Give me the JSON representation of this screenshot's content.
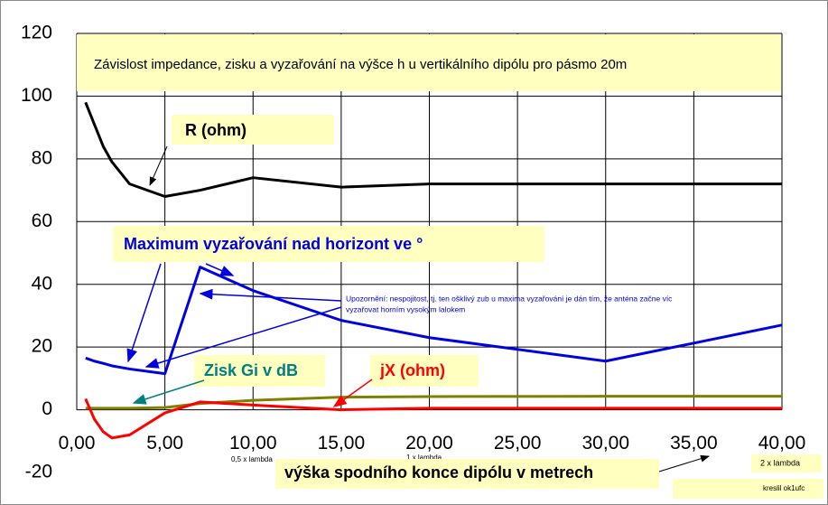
{
  "chart_data": {
    "type": "line",
    "title": "Závislost impedance, zisku a vyzařování na výšce h u vertikálního dipólu pro pásmo 20m",
    "x_label": "výška spodního konce dipólu v metrech",
    "x": [
      0.5,
      1,
      1.5,
      2,
      3,
      5,
      7,
      10,
      15,
      20,
      30,
      40
    ],
    "series": [
      {
        "name": "R (ohm)",
        "color": "#000000",
        "values": [
          98,
          91,
          84,
          79,
          72,
          68,
          70,
          74,
          71,
          72,
          72,
          72
        ]
      },
      {
        "name": "Maximum vyzařování nad horizont ve °",
        "color": "#0000e0",
        "values": [
          16.5,
          15.5,
          14.8,
          14,
          13,
          11.5,
          45.5,
          38,
          28.5,
          23,
          15.5,
          27
        ]
      },
      {
        "name": "Zisk Gi v dB",
        "color": "#808000",
        "label_color": "#008080",
        "values": [
          0.5,
          0.5,
          0.5,
          0.5,
          0.5,
          0.7,
          2,
          3,
          4,
          4.2,
          4.3,
          4.3
        ]
      },
      {
        "name": "jX (ohm)",
        "color": "#ff0000",
        "values": [
          3.5,
          -3,
          -7,
          -9,
          -8,
          -1,
          2.5,
          1.5,
          0,
          0.5,
          0.5,
          0.5
        ]
      }
    ],
    "xlim": [
      0,
      40
    ],
    "xticks": [
      {
        "value": 0,
        "label": "0,00"
      },
      {
        "value": 5,
        "label": "5,00"
      },
      {
        "value": 10,
        "label": "10,00"
      },
      {
        "value": 15,
        "label": "15,00"
      },
      {
        "value": 20,
        "label": "20,00"
      },
      {
        "value": 25,
        "label": "25,00"
      },
      {
        "value": 30,
        "label": "30,00"
      },
      {
        "value": 35,
        "label": "35,00"
      },
      {
        "value": 40,
        "label": "40,00"
      }
    ],
    "ylim": [
      -20,
      120
    ],
    "yticks": [
      -20,
      0,
      20,
      40,
      60,
      80,
      100,
      120
    ],
    "grid": true,
    "note": [
      "Upozornění: nespojitost, tj. ten ošklivý zub u maxima vyzařování je dán tím, že anténa začne víc",
      "vyzařovat horním vysokým lalokem"
    ],
    "annotations": [
      "0,5 x lambda",
      "1 x lambda",
      "2 x lambda",
      "kreslil ok1ufc"
    ]
  }
}
